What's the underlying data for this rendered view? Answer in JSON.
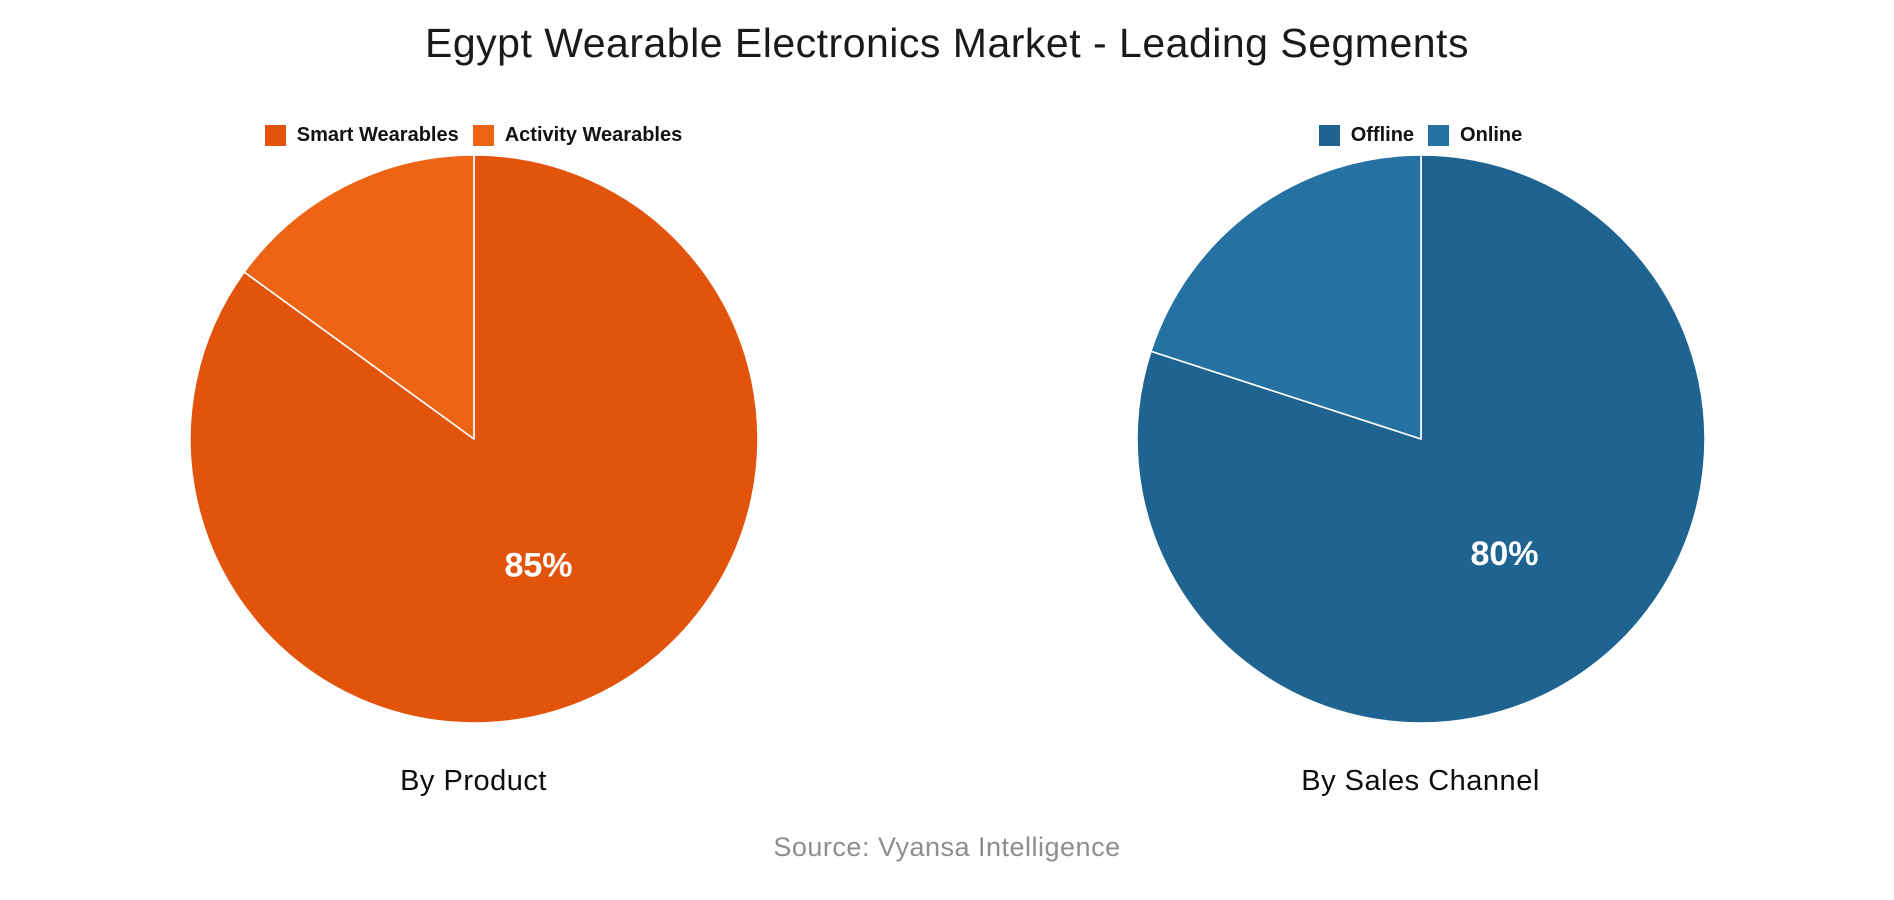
{
  "title": "Egypt Wearable Electronics Market - Leading Segments",
  "source": "Source: Vyansa Intelligence",
  "chart_data": [
    {
      "type": "pie",
      "title": "By Product",
      "legend_position": "top",
      "start_angle_deg": 0,
      "direction": "clockwise",
      "slices": [
        {
          "label": "Smart Wearables",
          "value": 85,
          "color": "#e2540c",
          "data_label": "85%"
        },
        {
          "label": "Activity Wearables",
          "value": 15,
          "color": "#ed6414",
          "data_label": ""
        }
      ],
      "data_label_color": "#ffffff"
    },
    {
      "type": "pie",
      "title": "By Sales Channel",
      "legend_position": "top",
      "start_angle_deg": 0,
      "direction": "clockwise",
      "slices": [
        {
          "label": "Offline",
          "value": 80,
          "color": "#1f6390",
          "data_label": "80%"
        },
        {
          "label": "Online",
          "value": 20,
          "color": "#2572a2",
          "data_label": ""
        }
      ],
      "data_label_color": "#ffffff"
    }
  ]
}
